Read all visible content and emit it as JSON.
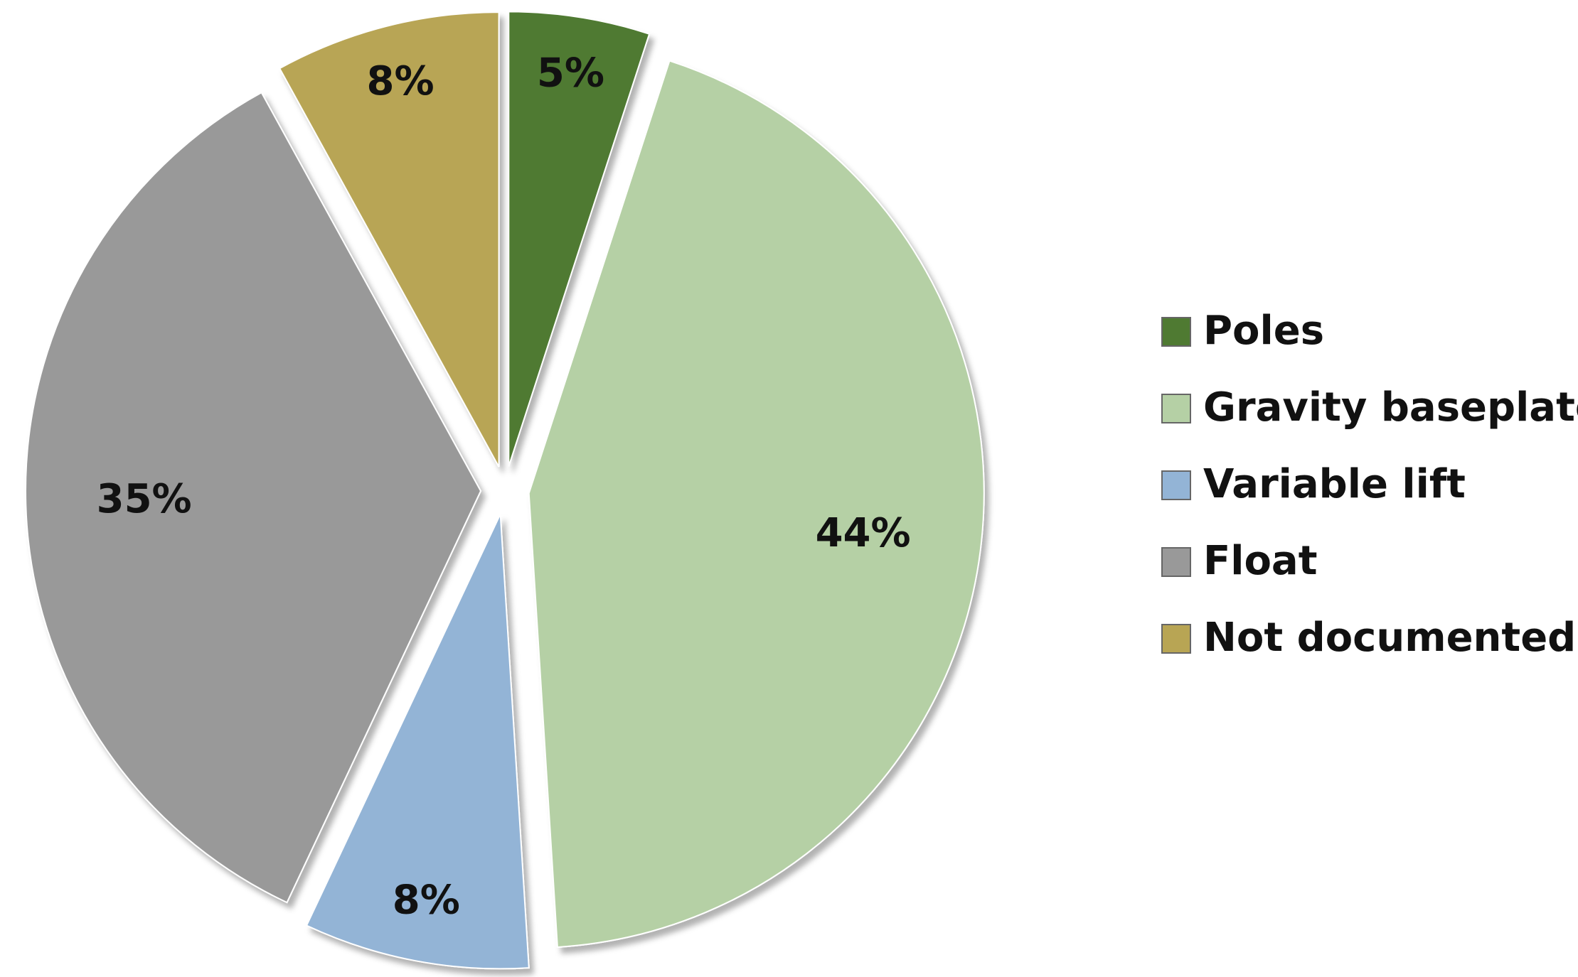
{
  "chart_data": {
    "type": "pie",
    "categories": [
      "Poles",
      "Gravity baseplate",
      "Variable lift",
      "Float",
      "Not documented"
    ],
    "values": [
      5,
      44,
      8,
      35,
      8
    ],
    "value_labels": [
      "5%",
      "44%",
      "8%",
      "35%",
      "8%"
    ],
    "colors": [
      "#4f7a32",
      "#b5d0a5",
      "#93b4d6",
      "#999999",
      "#b8a554"
    ],
    "legend": "right"
  }
}
